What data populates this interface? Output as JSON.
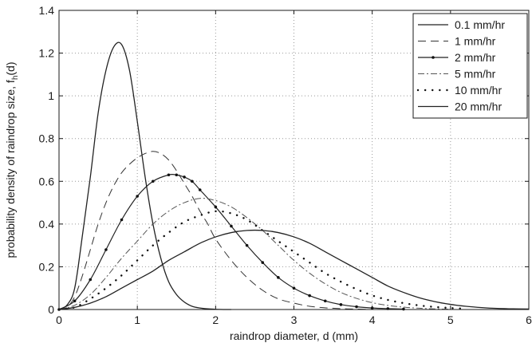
{
  "chart_data": {
    "type": "line",
    "xlabel": "raindrop diameter, d (mm)",
    "ylabel_main": "probability density of raindrop size, f",
    "ylabel_sub": "h",
    "ylabel_tail": "(d)",
    "xlim": [
      0,
      6
    ],
    "ylim": [
      0,
      1.4
    ],
    "xticks": [
      0,
      1,
      2,
      3,
      4,
      5,
      6
    ],
    "yticks": [
      0,
      0.2,
      0.4,
      0.6,
      0.8,
      1,
      1.2,
      1.4
    ],
    "xtick_labels": [
      "0",
      "1",
      "2",
      "3",
      "4",
      "5",
      "6"
    ],
    "ytick_labels": [
      "0",
      "0.2",
      "0.4",
      "0.6",
      "0.8",
      "1",
      "1.2",
      "1.4"
    ],
    "grid": true,
    "legend_position": "top-right",
    "series": [
      {
        "name": "0.1 mm/hr",
        "style": "solid",
        "x": [
          0,
          0.1,
          0.2,
          0.3,
          0.4,
          0.5,
          0.6,
          0.7,
          0.8,
          0.9,
          1.0,
          1.1,
          1.2,
          1.3,
          1.4,
          1.5,
          1.6,
          1.7,
          1.8,
          1.9,
          2.0,
          2.1,
          2.2
        ],
        "y": [
          0,
          0.02,
          0.1,
          0.35,
          0.62,
          0.92,
          1.12,
          1.23,
          1.24,
          1.12,
          0.88,
          0.62,
          0.4,
          0.24,
          0.13,
          0.07,
          0.035,
          0.015,
          0.007,
          0.003,
          0.001,
          0,
          0
        ]
      },
      {
        "name": "1 mm/hr",
        "style": "dashed",
        "x": [
          0,
          0.1,
          0.2,
          0.3,
          0.4,
          0.5,
          0.6,
          0.7,
          0.8,
          0.9,
          1.0,
          1.1,
          1.2,
          1.3,
          1.4,
          1.5,
          1.6,
          1.7,
          1.8,
          1.9,
          2.0,
          2.2,
          2.4,
          2.6,
          2.8,
          3.0,
          3.2,
          3.4,
          3.6,
          3.8,
          4.0
        ],
        "y": [
          0,
          0.01,
          0.06,
          0.16,
          0.28,
          0.4,
          0.5,
          0.58,
          0.64,
          0.68,
          0.71,
          0.73,
          0.74,
          0.73,
          0.7,
          0.65,
          0.59,
          0.53,
          0.46,
          0.4,
          0.33,
          0.23,
          0.15,
          0.09,
          0.05,
          0.03,
          0.015,
          0.008,
          0.004,
          0.002,
          0
        ]
      },
      {
        "name": "2 mm/hr",
        "style": "solid-dots",
        "x": [
          0,
          0.2,
          0.4,
          0.6,
          0.8,
          1.0,
          1.2,
          1.4,
          1.5,
          1.6,
          1.7,
          1.8,
          2.0,
          2.2,
          2.4,
          2.6,
          2.8,
          3.0,
          3.2,
          3.4,
          3.6,
          3.8,
          4.0,
          4.2,
          4.4
        ],
        "y": [
          0,
          0.04,
          0.14,
          0.28,
          0.42,
          0.53,
          0.6,
          0.63,
          0.63,
          0.62,
          0.6,
          0.56,
          0.48,
          0.39,
          0.3,
          0.22,
          0.15,
          0.1,
          0.065,
          0.04,
          0.023,
          0.013,
          0.007,
          0.004,
          0.002
        ]
      },
      {
        "name": "5 mm/hr",
        "style": "dashdot",
        "x": [
          0,
          0.2,
          0.4,
          0.6,
          0.8,
          1.0,
          1.2,
          1.4,
          1.6,
          1.8,
          2.0,
          2.2,
          2.4,
          2.6,
          2.8,
          3.0,
          3.2,
          3.4,
          3.6,
          3.8,
          4.0,
          4.2,
          4.4,
          4.6,
          4.8,
          5.0
        ],
        "y": [
          0,
          0.02,
          0.07,
          0.15,
          0.24,
          0.32,
          0.4,
          0.46,
          0.5,
          0.52,
          0.51,
          0.48,
          0.43,
          0.37,
          0.3,
          0.23,
          0.17,
          0.12,
          0.08,
          0.052,
          0.032,
          0.019,
          0.011,
          0.006,
          0.003,
          0.001
        ]
      },
      {
        "name": "10 mm/hr",
        "style": "dotted",
        "x": [
          0,
          0.2,
          0.4,
          0.6,
          0.8,
          1.0,
          1.2,
          1.4,
          1.6,
          1.8,
          2.0,
          2.2,
          2.4,
          2.6,
          2.8,
          3.0,
          3.2,
          3.4,
          3.6,
          3.8,
          4.0,
          4.2,
          4.4,
          4.6,
          4.8,
          5.0,
          5.2
        ],
        "y": [
          0,
          0.01,
          0.05,
          0.1,
          0.16,
          0.23,
          0.3,
          0.36,
          0.41,
          0.44,
          0.46,
          0.45,
          0.42,
          0.37,
          0.32,
          0.27,
          0.22,
          0.17,
          0.13,
          0.095,
          0.066,
          0.045,
          0.03,
          0.019,
          0.012,
          0.007,
          0.004
        ]
      },
      {
        "name": "20 mm/hr",
        "style": "solid",
        "x": [
          0,
          0.2,
          0.4,
          0.6,
          0.8,
          1.0,
          1.2,
          1.4,
          1.6,
          1.8,
          2.0,
          2.2,
          2.4,
          2.6,
          2.8,
          3.0,
          3.2,
          3.4,
          3.6,
          3.8,
          4.0,
          4.2,
          4.4,
          4.6,
          4.8,
          5.0,
          5.2,
          5.4,
          5.6,
          5.8,
          6.0
        ],
        "y": [
          0,
          0.01,
          0.03,
          0.06,
          0.1,
          0.14,
          0.18,
          0.23,
          0.27,
          0.31,
          0.34,
          0.36,
          0.37,
          0.37,
          0.36,
          0.34,
          0.31,
          0.27,
          0.23,
          0.19,
          0.15,
          0.11,
          0.08,
          0.055,
          0.037,
          0.024,
          0.015,
          0.009,
          0.005,
          0.003,
          0.002
        ]
      }
    ]
  }
}
